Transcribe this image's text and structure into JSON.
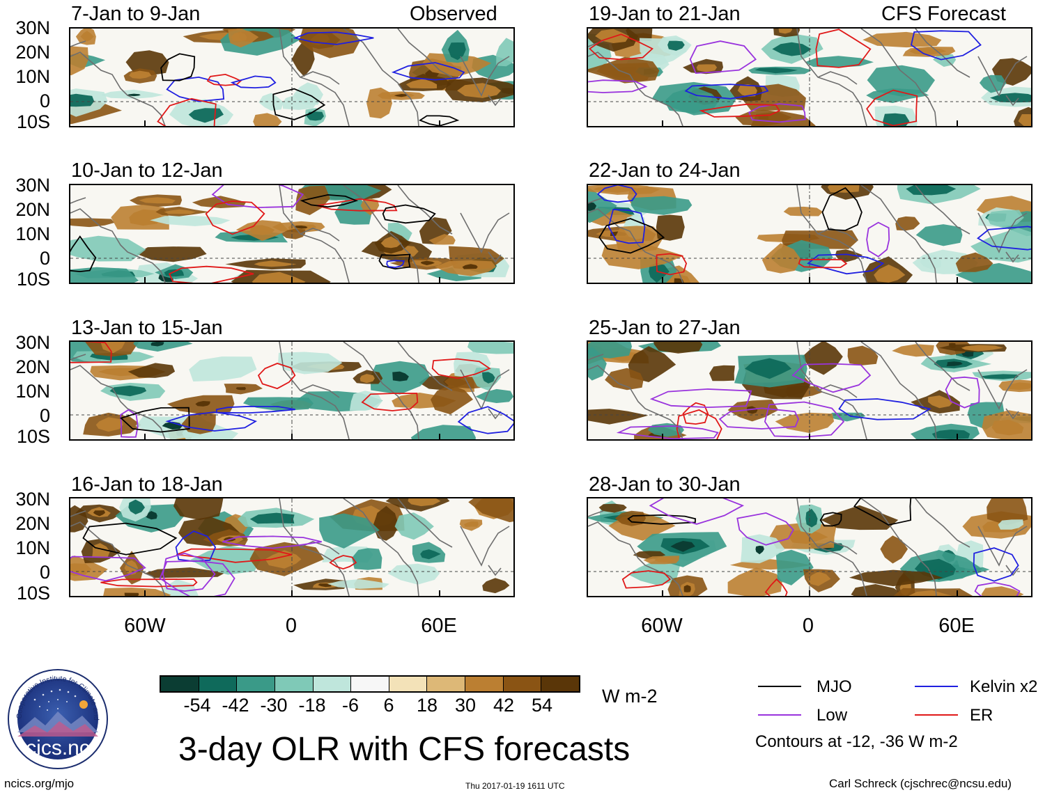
{
  "left_column_label": "Observed",
  "right_column_label": "CFS Forecast",
  "panels": [
    {
      "period": "7-Jan to 9-Jan"
    },
    {
      "period": "19-Jan to 21-Jan"
    },
    {
      "period": "10-Jan to 12-Jan"
    },
    {
      "period": "22-Jan to 24-Jan"
    },
    {
      "period": "13-Jan to 15-Jan"
    },
    {
      "period": "25-Jan to 27-Jan"
    },
    {
      "period": "16-Jan to 18-Jan"
    },
    {
      "period": "28-Jan to 30-Jan"
    }
  ],
  "lat_labels": [
    "30N",
    "20N",
    "10N",
    "0",
    "10S"
  ],
  "lon_labels": [
    "60W",
    "0",
    "60E"
  ],
  "colorbar": {
    "units": "W m-2",
    "tick_labels": [
      "-54",
      "-42",
      "-30",
      "-18",
      "-6",
      "6",
      "18",
      "30",
      "42",
      "54"
    ],
    "colors": [
      "#0b3d33",
      "#0f6a5b",
      "#3a9a88",
      "#7fc9b7",
      "#bfe6dc",
      "#f7f7f7",
      "#f3e2b8",
      "#ddb877",
      "#bb7f32",
      "#8a5414",
      "#5a3608"
    ]
  },
  "legend": {
    "items": [
      {
        "label": "MJO",
        "color": "#000000"
      },
      {
        "label": "Kelvin x2",
        "color": "#1f1fe0"
      },
      {
        "label": "Low",
        "color": "#9933dd"
      },
      {
        "label": "ER",
        "color": "#e01818"
      }
    ],
    "note": "Contours at -12, -36 W m-2"
  },
  "main_title": "3-day OLR with CFS forecasts",
  "logo_text": "cics.nc",
  "logo_ring_text": "Cooperative Institute for Climate and Satellites",
  "footer": {
    "left": "ncics.org/mjo",
    "center": "Thu 2017-01-19 1611 UTC",
    "right": "Carl Schreck (cjschrec@ncsu.edu)"
  }
}
